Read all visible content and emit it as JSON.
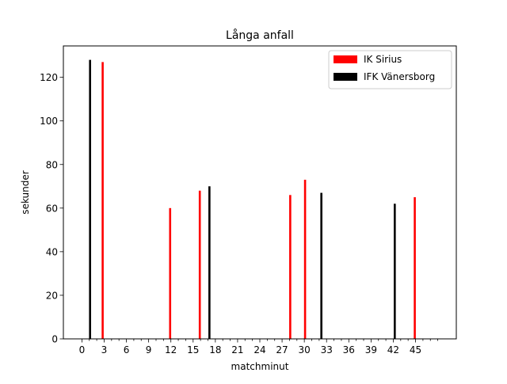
{
  "chart_data": {
    "type": "bar",
    "title": "Långa anfall",
    "xlabel": "matchminut",
    "ylabel": "sekunder",
    "xlim": [
      -2.5,
      50.5
    ],
    "ylim": [
      0,
      134.4
    ],
    "x_major_ticks": [
      0,
      3,
      6,
      9,
      12,
      15,
      18,
      21,
      24,
      27,
      30,
      33,
      36,
      39,
      42,
      45
    ],
    "x_minor_ticks": [
      1,
      2,
      4,
      5,
      7,
      8,
      10,
      11,
      13,
      14,
      16,
      17,
      19,
      20,
      22,
      23,
      25,
      26,
      28,
      29,
      31,
      32,
      34,
      35,
      37,
      38,
      40,
      41,
      43,
      44,
      46,
      47,
      48
    ],
    "y_ticks": [
      0,
      20,
      40,
      60,
      80,
      100,
      120
    ],
    "grid": false,
    "legend_position": "top-right",
    "series": [
      {
        "name": "IK Sirius",
        "color": "#ff0000",
        "points": [
          {
            "x": 2.8,
            "y": 127
          },
          {
            "x": 11.9,
            "y": 60
          },
          {
            "x": 15.9,
            "y": 68
          },
          {
            "x": 28.1,
            "y": 66
          },
          {
            "x": 30.1,
            "y": 73
          },
          {
            "x": 44.9,
            "y": 65
          }
        ]
      },
      {
        "name": "IFK Vänersborg",
        "color": "#000000",
        "points": [
          {
            "x": 1.1,
            "y": 128
          },
          {
            "x": 17.2,
            "y": 70
          },
          {
            "x": 32.3,
            "y": 67
          },
          {
            "x": 42.2,
            "y": 62
          }
        ]
      }
    ]
  }
}
